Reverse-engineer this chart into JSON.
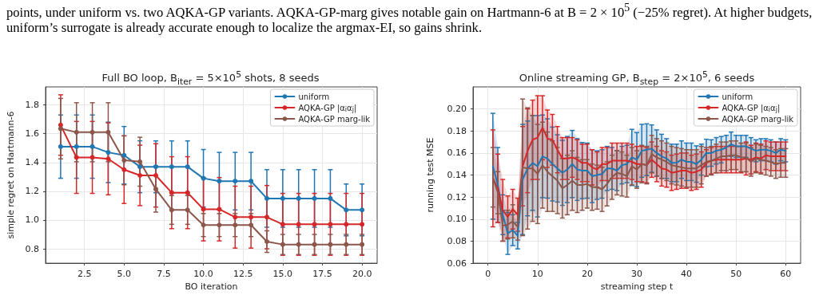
{
  "chart_data": [
    {
      "type": "line",
      "title": "Full BO loop, B$_{iter}$ = 5×10$^{5}$ shots, 8 seeds",
      "xlabel": "BO iteration",
      "ylabel": "simple regret on Hartmann-6",
      "annotations": [
        "points, under uniform vs. two AQKA-GP variants. AQKA-GP-marg gives notable gain on Hartmann-6 at B = 2 × 10$^{5}$ (−25% regret). At higher budgets, uniform’s surrogate is already accurate enough to localize the argmax-EI, so gains shrink."
      ],
      "x": [
        1,
        2,
        3,
        4,
        5,
        6,
        7,
        8,
        9,
        10,
        11,
        12,
        13,
        14,
        15,
        16,
        17,
        18,
        19,
        20
      ],
      "series": [
        {
          "name": "uniform",
          "color": "#1f77b4",
          "values": [
            1.51,
            1.51,
            1.51,
            1.47,
            1.45,
            1.37,
            1.37,
            1.37,
            1.37,
            1.29,
            1.27,
            1.27,
            1.27,
            1.15,
            1.15,
            1.15,
            1.15,
            1.15,
            1.07,
            1.07
          ],
          "errors": [
            0.22,
            0.22,
            0.22,
            0.21,
            0.2,
            0.18,
            0.18,
            0.18,
            0.18,
            0.2,
            0.2,
            0.2,
            0.2,
            0.2,
            0.2,
            0.2,
            0.2,
            0.2,
            0.18,
            0.18
          ]
        },
        {
          "name": "AQKA-GP |α$_{i}$α$_{j}$|",
          "color": "#d62728",
          "values": [
            1.66,
            1.435,
            1.435,
            1.425,
            1.35,
            1.31,
            1.31,
            1.19,
            1.19,
            1.075,
            1.075,
            1.02,
            1.02,
            1.02,
            0.97,
            0.97,
            0.97,
            0.97,
            0.97,
            0.97
          ],
          "errors": [
            0.21,
            0.25,
            0.25,
            0.25,
            0.235,
            0.21,
            0.22,
            0.25,
            0.25,
            0.22,
            0.22,
            0.215,
            0.215,
            0.22,
            0.215,
            0.215,
            0.215,
            0.215,
            0.215,
            0.215
          ]
        },
        {
          "name": "AQKA-GP marg-lik",
          "color": "#8c564b",
          "values": [
            1.635,
            1.61,
            1.61,
            1.61,
            1.415,
            1.405,
            1.215,
            1.07,
            1.07,
            0.965,
            0.965,
            0.965,
            0.965,
            0.85,
            0.83,
            0.83,
            0.83,
            0.83,
            0.83,
            0.83
          ],
          "errors": [
            0.21,
            0.205,
            0.205,
            0.205,
            0.17,
            0.17,
            0.16,
            0.1,
            0.1,
            0.08,
            0.08,
            0.08,
            0.08,
            0.075,
            0.07,
            0.07,
            0.07,
            0.07,
            0.07,
            0.07
          ]
        }
      ],
      "xlim": [
        0.05,
        20.95
      ],
      "xticks": [
        2.5,
        {
          "value": 5,
          "label": "5.0"
        },
        7.5,
        {
          "value": 10,
          "label": "10.0"
        },
        12.5,
        {
          "value": 15,
          "label": "15.0"
        },
        17.5,
        {
          "value": 20,
          "label": "20.0"
        }
      ],
      "ylim": [
        0.7,
        1.925
      ],
      "yticks": [
        0.8,
        {
          "value": 1,
          "label": "1.0"
        },
        1.2,
        1.4,
        1.6,
        1.8
      ],
      "grid": true,
      "legend": "top right",
      "marker": "circle",
      "line_style": "solid"
    },
    {
      "type": "line",
      "title": "Online streaming GP, B$_{step}$ = 2×10$^{5}$, 6 seeds",
      "xlabel": "streaming step t",
      "ylabel": "running test MSE",
      "x": [
        1,
        2,
        3,
        4,
        5,
        6,
        7,
        8,
        9,
        10,
        11,
        12,
        13,
        14,
        15,
        16,
        17,
        18,
        19,
        20,
        21,
        22,
        23,
        24,
        25,
        26,
        27,
        28,
        29,
        30,
        31,
        32,
        33,
        34,
        35,
        36,
        37,
        38,
        39,
        40,
        41,
        42,
        43,
        44,
        45,
        46,
        47,
        48,
        49,
        50,
        51,
        52,
        53,
        54,
        55,
        56,
        57,
        58,
        59,
        60
      ],
      "series": [
        {
          "name": "uniform",
          "color": "#1f77b4",
          "values": [
            0.148,
            0.131,
            0.104,
            0.087,
            0.09,
            0.085,
            0.136,
            0.146,
            0.151,
            0.148,
            0.157,
            0.155,
            0.15,
            0.146,
            0.142,
            0.145,
            0.15,
            0.145,
            0.144,
            0.144,
            0.139,
            0.14,
            0.141,
            0.146,
            0.146,
            0.144,
            0.149,
            0.15,
            0.156,
            0.154,
            0.162,
            0.163,
            0.164,
            0.16,
            0.157,
            0.155,
            0.151,
            0.151,
            0.154,
            0.152,
            0.152,
            0.15,
            0.154,
            0.16,
            0.16,
            0.162,
            0.163,
            0.165,
            0.168,
            0.166,
            0.166,
            0.166,
            0.164,
            0.162,
            0.163,
            0.163,
            0.162,
            0.16,
            0.163,
            0.162
          ],
          "lower": [
            0.1,
            0.097,
            0.086,
            0.068,
            0.076,
            0.073,
            0.086,
            0.103,
            0.108,
            0.102,
            0.12,
            0.119,
            0.117,
            0.116,
            0.113,
            0.115,
            0.12,
            0.118,
            0.119,
            0.119,
            0.115,
            0.118,
            0.119,
            0.125,
            0.127,
            0.126,
            0.132,
            0.133,
            0.131,
            0.13,
            0.138,
            0.139,
            0.142,
            0.139,
            0.137,
            0.137,
            0.134,
            0.134,
            0.137,
            0.135,
            0.135,
            0.134,
            0.14,
            0.147,
            0.148,
            0.15,
            0.151,
            0.154,
            0.157,
            0.156,
            0.156,
            0.156,
            0.154,
            0.152,
            0.153,
            0.153,
            0.152,
            0.15,
            0.153,
            0.152
          ],
          "errors": [
            0.048,
            0.034,
            0.018,
            0.019,
            0.014,
            0.012,
            0.05,
            0.043,
            0.043,
            0.046,
            0.0375,
            0.036,
            0.0335,
            0.0305,
            0.0295,
            0.03,
            0.0305,
            0.028,
            0.0255,
            0.025,
            0.024,
            0.022,
            0.022,
            0.02,
            0.019,
            0.018,
            0.017,
            0.017,
            0.0255,
            0.0245,
            0.024,
            0.0235,
            0.0215,
            0.021,
            0.02,
            0.018,
            0.017,
            0.017,
            0.017,
            0.017,
            0.017,
            0.0165,
            0.014,
            0.0125,
            0.012,
            0.012,
            0.012,
            0.011,
            0.011,
            0.01,
            0.01,
            0.01,
            0.01,
            0.01,
            0.01,
            0.01,
            0.01,
            0.01,
            0.01,
            0.01
          ],
          "upper": [
            0.196,
            0.165,
            0.122,
            0.106,
            0.104,
            0.097,
            0.186,
            0.189,
            0.194,
            0.194,
            0.195,
            0.191,
            0.184,
            0.177,
            0.172,
            0.175,
            0.181,
            0.174,
            0.17,
            0.169,
            0.163,
            0.162,
            0.163,
            0.165,
            0.165,
            0.162,
            0.166,
            0.167,
            0.182,
            0.179,
            0.186,
            0.186,
            0.185,
            0.181,
            0.177,
            0.173,
            0.168,
            0.168,
            0.171,
            0.169,
            0.169,
            0.167,
            0.168,
            0.172,
            0.172,
            0.174,
            0.175,
            0.176,
            0.179,
            0.176,
            0.176,
            0.176,
            0.174,
            0.172,
            0.173,
            0.173,
            0.172,
            0.17,
            0.173,
            0.172
          ]
        },
        {
          "name": "AQKA-GP |α$_{i}$α$_{j}$|",
          "color": "#d62728",
          "values": [
            0.137,
            0.128,
            0.108,
            0.102,
            0.109,
            0.104,
            0.148,
            0.162,
            0.172,
            0.174,
            0.183,
            0.173,
            0.172,
            0.163,
            0.155,
            0.155,
            0.156,
            0.154,
            0.151,
            0.151,
            0.147,
            0.145,
            0.15,
            0.15,
            0.153,
            0.153,
            0.153,
            0.153,
            0.152,
            0.15,
            0.15,
            0.149,
            0.154,
            0.15,
            0.146,
            0.145,
            0.142,
            0.143,
            0.144,
            0.144,
            0.142,
            0.143,
            0.145,
            0.151,
            0.153,
            0.154,
            0.154,
            0.154,
            0.154,
            0.154,
            0.154,
            0.155,
            0.154,
            0.156,
            0.155,
            0.158,
            0.157,
            0.157,
            0.157,
            0.157
          ],
          "lower": [
            0.093,
            0.097,
            0.08,
            0.083,
            0.091,
            0.089,
            0.112,
            0.124,
            0.136,
            0.136,
            0.154,
            0.147,
            0.149,
            0.142,
            0.136,
            0.136,
            0.138,
            0.136,
            0.134,
            0.134,
            0.131,
            0.129,
            0.135,
            0.135,
            0.137,
            0.137,
            0.137,
            0.137,
            0.136,
            0.134,
            0.134,
            0.133,
            0.138,
            0.134,
            0.13,
            0.129,
            0.126,
            0.127,
            0.128,
            0.128,
            0.126,
            0.127,
            0.129,
            0.139,
            0.141,
            0.142,
            0.142,
            0.142,
            0.142,
            0.142,
            0.142,
            0.14,
            0.141,
            0.143,
            0.142,
            0.145,
            0.144,
            0.144,
            0.144,
            0.144
          ],
          "errors": [
            0.044,
            0.031,
            0.028,
            0.019,
            0.018,
            0.015,
            0.036,
            0.038,
            0.036,
            0.038,
            0.029,
            0.026,
            0.023,
            0.021,
            0.019,
            0.019,
            0.018,
            0.018,
            0.017,
            0.017,
            0.016,
            0.016,
            0.015,
            0.015,
            0.016,
            0.016,
            0.016,
            0.016,
            0.016,
            0.016,
            0.016,
            0.016,
            0.016,
            0.016,
            0.016,
            0.016,
            0.016,
            0.016,
            0.016,
            0.016,
            0.016,
            0.016,
            0.016,
            0.012,
            0.012,
            0.012,
            0.012,
            0.012,
            0.012,
            0.012,
            0.012,
            0.015,
            0.013,
            0.013,
            0.013,
            0.013,
            0.013,
            0.013,
            0.013,
            0.013
          ],
          "upper": [
            0.181,
            0.159,
            0.136,
            0.121,
            0.127,
            0.119,
            0.184,
            0.2,
            0.208,
            0.212,
            0.212,
            0.199,
            0.195,
            0.184,
            0.174,
            0.174,
            0.174,
            0.172,
            0.168,
            0.168,
            0.163,
            0.161,
            0.165,
            0.165,
            0.169,
            0.169,
            0.169,
            0.169,
            0.168,
            0.166,
            0.166,
            0.165,
            0.17,
            0.166,
            0.162,
            0.161,
            0.158,
            0.159,
            0.16,
            0.16,
            0.158,
            0.159,
            0.161,
            0.163,
            0.165,
            0.166,
            0.166,
            0.166,
            0.166,
            0.166,
            0.166,
            0.17,
            0.167,
            0.169,
            0.168,
            0.171,
            0.17,
            0.17,
            0.17,
            0.17
          ]
        },
        {
          "name": "AQKA-GP marg-lik",
          "color": "#8c564b",
          "values": [
            0.138,
            0.124,
            0.094,
            0.095,
            0.098,
            0.093,
            0.147,
            0.146,
            0.146,
            0.141,
            0.149,
            0.143,
            0.139,
            0.135,
            0.128,
            0.131,
            0.135,
            0.131,
            0.131,
            0.132,
            0.129,
            0.129,
            0.127,
            0.132,
            0.138,
            0.142,
            0.141,
            0.139,
            0.148,
            0.145,
            0.15,
            0.149,
            0.159,
            0.156,
            0.154,
            0.152,
            0.149,
            0.148,
            0.147,
            0.146,
            0.146,
            0.146,
            0.149,
            0.152,
            0.153,
            0.155,
            0.157,
            0.157,
            0.158,
            0.158,
            0.156,
            0.156,
            0.152,
            0.155,
            0.154,
            0.153,
            0.152,
            0.15,
            0.151,
            0.151
          ],
          "lower": [
            0.111,
            0.105,
            0.08,
            0.082,
            0.083,
            0.081,
            0.085,
            0.091,
            0.098,
            0.096,
            0.11,
            0.107,
            0.107,
            0.105,
            0.101,
            0.104,
            0.108,
            0.106,
            0.108,
            0.11,
            0.108,
            0.109,
            0.107,
            0.112,
            0.118,
            0.122,
            0.121,
            0.12,
            0.131,
            0.128,
            0.133,
            0.132,
            0.142,
            0.139,
            0.137,
            0.135,
            0.132,
            0.131,
            0.13,
            0.129,
            0.129,
            0.129,
            0.132,
            0.139,
            0.14,
            0.142,
            0.144,
            0.144,
            0.145,
            0.145,
            0.143,
            0.143,
            0.139,
            0.142,
            0.141,
            0.14,
            0.139,
            0.137,
            0.138,
            0.138
          ],
          "errors": [
            0.027,
            0.019,
            0.014,
            0.013,
            0.015,
            0.012,
            0.062,
            0.055,
            0.048,
            0.045,
            0.039,
            0.036,
            0.032,
            0.03,
            0.027,
            0.027,
            0.027,
            0.025,
            0.023,
            0.022,
            0.021,
            0.02,
            0.02,
            0.02,
            0.02,
            0.02,
            0.02,
            0.019,
            0.017,
            0.017,
            0.017,
            0.017,
            0.017,
            0.017,
            0.017,
            0.017,
            0.017,
            0.017,
            0.017,
            0.017,
            0.017,
            0.017,
            0.017,
            0.013,
            0.013,
            0.013,
            0.013,
            0.013,
            0.013,
            0.013,
            0.013,
            0.013,
            0.013,
            0.013,
            0.013,
            0.013,
            0.013,
            0.013,
            0.013,
            0.013
          ],
          "upper": [
            0.165,
            0.143,
            0.108,
            0.108,
            0.113,
            0.105,
            0.209,
            0.201,
            0.194,
            0.186,
            0.188,
            0.179,
            0.171,
            0.165,
            0.155,
            0.158,
            0.162,
            0.156,
            0.154,
            0.154,
            0.15,
            0.149,
            0.147,
            0.152,
            0.158,
            0.162,
            0.161,
            0.158,
            0.165,
            0.162,
            0.167,
            0.166,
            0.176,
            0.173,
            0.171,
            0.169,
            0.166,
            0.165,
            0.164,
            0.163,
            0.163,
            0.163,
            0.166,
            0.165,
            0.166,
            0.168,
            0.17,
            0.17,
            0.171,
            0.171,
            0.169,
            0.169,
            0.165,
            0.168,
            0.167,
            0.166,
            0.165,
            0.163,
            0.164,
            0.164
          ]
        }
      ],
      "xlim": [
        -3,
        63
      ],
      "xticks": [
        0,
        10,
        20,
        30,
        40,
        50,
        60
      ],
      "ylim": [
        0.06,
        0.22
      ],
      "yticks": [
        0.06,
        0.08,
        {
          "value": 0.1,
          "label": "0.10"
        },
        0.12,
        0.14,
        0.16,
        0.18,
        {
          "value": 0.2,
          "label": "0.20"
        }
      ],
      "grid": true,
      "legend": "top right",
      "marker": "none",
      "line_style": "solid"
    }
  ]
}
